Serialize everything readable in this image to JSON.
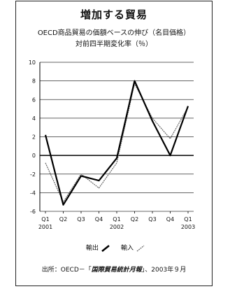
{
  "chart_data": {
    "type": "line",
    "title": "増加する貿易",
    "subtitle": "OECD商品貿易の価額ベースの伸び（名目価格）",
    "subtitle2": "対前四半期変化率（％）",
    "ylim": [
      -6,
      10
    ],
    "yticks": [
      "10",
      "8",
      "6",
      "4",
      "2",
      "0",
      "-2",
      "-4",
      "-6"
    ],
    "ytick_values": [
      10,
      8,
      6,
      4,
      2,
      0,
      -2,
      -4,
      -6
    ],
    "categories": [
      "Q1",
      "Q2",
      "Q3",
      "Q4",
      "Q1",
      "Q2",
      "Q3",
      "Q4",
      "Q1"
    ],
    "year_labels": [
      {
        "index": 0,
        "label": "2001"
      },
      {
        "index": 4,
        "label": "2002"
      },
      {
        "index": 8,
        "label": "2003"
      }
    ],
    "grid": true,
    "series": [
      {
        "name": "輸出",
        "style": "solid",
        "color": "#000000",
        "values": [
          2.2,
          -5.3,
          -2.2,
          -2.7,
          -0.3,
          8.0,
          3.7,
          0.0,
          5.3
        ]
      },
      {
        "name": "輸入",
        "style": "dashed",
        "color": "#666666",
        "values": [
          -0.8,
          -5.0,
          -2.0,
          -3.5,
          -0.8,
          7.7,
          4.0,
          1.8,
          5.2
        ]
      }
    ],
    "legend_position": "bottom"
  },
  "source": {
    "prefix": "出所：OECD－「",
    "publication": "国際貿易統計月報",
    "suffix": "」、2003年９月"
  }
}
